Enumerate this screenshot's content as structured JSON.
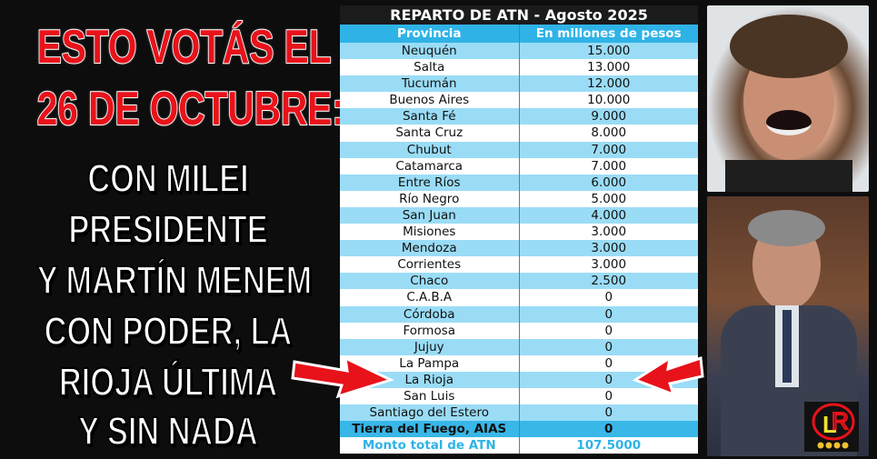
{
  "left_text": {
    "red_lines": [
      "ESTO VOTÁS EL",
      "26 DE OCTUBRE:"
    ],
    "white_lines": [
      "CON MILEI",
      "PRESIDENTE",
      "Y MARTÍN MENEM",
      "CON PODER, LA",
      "RIOJA ÚLTIMA",
      "Y SIN NADA"
    ]
  },
  "table": {
    "title": "REPARTO DE ATN - Agosto 2025",
    "headers": [
      "Provincia",
      "En millones de pesos"
    ],
    "rows": [
      [
        "Neuquén",
        "15.000"
      ],
      [
        "Salta",
        "13.000"
      ],
      [
        "Tucumán",
        "12.000"
      ],
      [
        "Buenos Aires",
        "10.000"
      ],
      [
        "Santa Fé",
        "9.000"
      ],
      [
        "Santa Cruz",
        "8.000"
      ],
      [
        "Chubut",
        "7.000"
      ],
      [
        "Catamarca",
        "7.000"
      ],
      [
        "Entre Ríos",
        "6.000"
      ],
      [
        "Río Negro",
        "5.000"
      ],
      [
        "San Juan",
        "4.000"
      ],
      [
        "Misiones",
        "3.000"
      ],
      [
        "Mendoza",
        "3.000"
      ],
      [
        "Corrientes",
        "3.000"
      ],
      [
        "Chaco",
        "2.500"
      ],
      [
        "C.A.B.A",
        "0"
      ],
      [
        "Córdoba",
        "0"
      ],
      [
        "Formosa",
        "0"
      ],
      [
        "Jujuy",
        "0"
      ],
      [
        "La Pampa",
        "0"
      ],
      [
        "La Rioja",
        "0"
      ],
      [
        "San Luis",
        "0"
      ],
      [
        "Santiago del Estero",
        "0"
      ],
      [
        "Tierra del Fuego, AIAS",
        "0"
      ]
    ],
    "total": [
      "Monto total de ATN",
      "107.5000"
    ]
  },
  "logo_text": "R L",
  "colors": {
    "red": "#e8121a",
    "header_blue": "#2fb3e6",
    "row_blue": "#9adcf6"
  }
}
